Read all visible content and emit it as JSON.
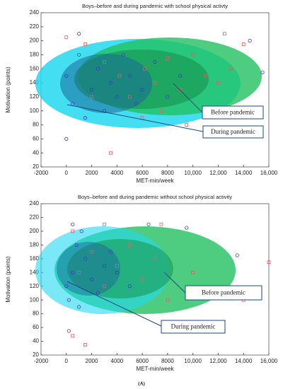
{
  "chart_data": [
    {
      "type": "scatter",
      "title": "Boys–before and during pandemic with school physical activty",
      "x_label": "MET-min/week",
      "y_label": "Motivation (points)",
      "xlim": [
        -2000,
        16000
      ],
      "xticks": [
        -2000,
        0,
        2000,
        4000,
        6000,
        8000,
        {
          "value": 10000,
          "label": "10,000"
        },
        {
          "value": 12000,
          "label": "12,000"
        },
        {
          "value": 14000,
          "label": "14,000"
        },
        {
          "value": 16000,
          "label": "16,000"
        }
      ],
      "ylim": [
        20,
        240
      ],
      "yticks": [
        20,
        40,
        60,
        80,
        100,
        120,
        140,
        160,
        180,
        200,
        220,
        240
      ],
      "series": [
        {
          "name": "Before pandemic",
          "color": "#e06060",
          "marker": "square",
          "x": [
            0,
            1500,
            3000,
            4200,
            5000,
            6200,
            7000,
            8000,
            9000,
            10000,
            11000,
            12500,
            13000,
            14000,
            3500,
            6000,
            9500,
            2000,
            7500,
            12000
          ],
          "values": [
            205,
            195,
            170,
            150,
            120,
            160,
            140,
            175,
            130,
            180,
            150,
            210,
            160,
            195,
            40,
            90,
            80,
            120,
            100,
            140
          ]
        },
        {
          "name": "During pandemic",
          "color": "#3a3acc",
          "marker": "circle",
          "x": [
            0,
            500,
            1000,
            1500,
            2000,
            2500,
            3000,
            3500,
            4000,
            4500,
            5000,
            5500,
            6000,
            7000,
            8000,
            9000,
            0,
            15500,
            14500,
            1000
          ],
          "values": [
            150,
            110,
            180,
            90,
            130,
            160,
            100,
            140,
            120,
            180,
            150,
            110,
            130,
            170,
            120,
            150,
            60,
            155,
            200,
            210
          ]
        }
      ]
    },
    {
      "type": "scatter",
      "title": "Boys–before and during pandemic without school physical activity",
      "x_label": "MET-min/week",
      "y_label": "Motivation (points)",
      "xlim": [
        -2000,
        16000
      ],
      "xticks": [
        -2000,
        0,
        2000,
        4000,
        6000,
        8000,
        {
          "value": 10000,
          "label": "10,000"
        },
        {
          "value": 12000,
          "label": "12,000"
        },
        {
          "value": 14000,
          "label": "14,000"
        },
        {
          "value": 16000,
          "label": "16,000"
        }
      ],
      "ylim": [
        20,
        240
      ],
      "yticks": [
        20,
        40,
        60,
        80,
        100,
        120,
        140,
        160,
        180,
        200,
        220,
        240
      ],
      "series": [
        {
          "name": "Before pandemic",
          "color": "#e06060",
          "marker": "square",
          "x": [
            500,
            1000,
            2000,
            3000,
            4000,
            5000,
            6000,
            7000,
            8000,
            3000,
            1500,
            500,
            10000,
            14000,
            16000,
            7500
          ],
          "values": [
            200,
            140,
            170,
            120,
            150,
            180,
            130,
            160,
            100,
            210,
            35,
            48,
            140,
            100,
            155,
            210
          ]
        },
        {
          "name": "During pandemic",
          "color": "#3a3acc",
          "marker": "circle",
          "x": [
            0,
            200,
            500,
            800,
            1000,
            1500,
            2000,
            2500,
            3000,
            3500,
            4000,
            5000,
            200,
            6500,
            9500,
            13500,
            500,
            1200
          ],
          "values": [
            120,
            100,
            140,
            180,
            90,
            160,
            130,
            110,
            150,
            170,
            140,
            120,
            55,
            210,
            205,
            165,
            210,
            200
          ]
        }
      ]
    }
  ],
  "caption": "(A)"
}
